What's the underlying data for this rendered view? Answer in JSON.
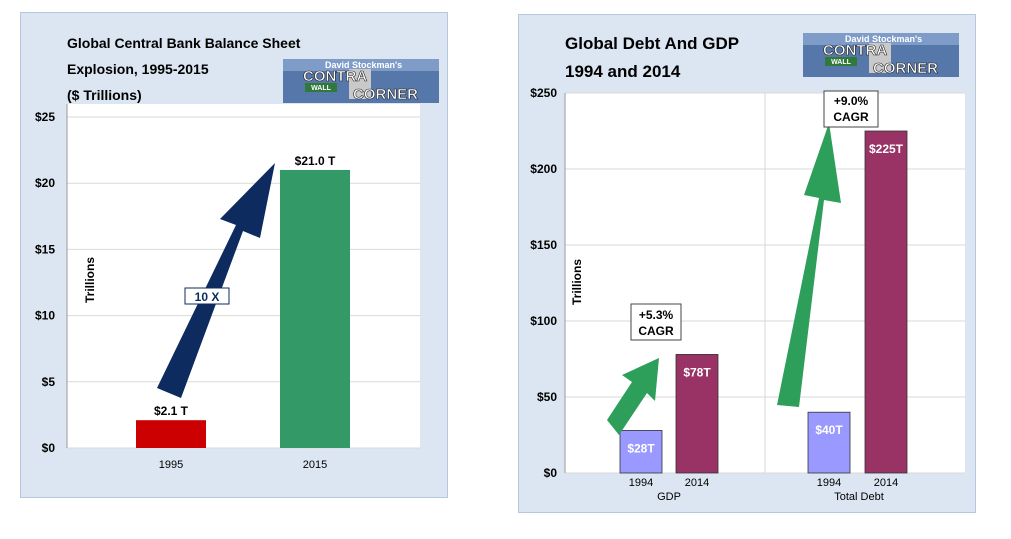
{
  "chart_data": [
    {
      "type": "bar",
      "title": "Global Central Bank Balance Sheet\nExplosion, 1995-2015\n($ Trillions)",
      "ylabel": "Trillions",
      "categories": [
        "1995",
        "2015"
      ],
      "values": [
        2.1,
        21.0
      ],
      "data_labels": [
        "$2.1 T",
        "$21.0 T"
      ],
      "ylim": [
        0,
        25
      ],
      "yticks": [
        0,
        5,
        10,
        15,
        20,
        25
      ],
      "ytick_labels": [
        "$0",
        "$5",
        "$10",
        "$15",
        "$20",
        "$25"
      ],
      "colors": [
        "#cc0000",
        "#339966"
      ],
      "grid": true,
      "annotations": [
        {
          "text": "10 X",
          "kind": "arrow",
          "color": "#0d2b5e"
        }
      ]
    },
    {
      "type": "bar",
      "title": "Global Debt And GDP\n1994 and 2014",
      "ylabel": "Trillions",
      "groups": [
        {
          "name": "GDP",
          "categories": [
            "1994",
            "2014"
          ],
          "values": [
            28,
            78
          ],
          "data_labels": [
            "$28T",
            "$78T"
          ]
        },
        {
          "name": "Total Debt",
          "categories": [
            "1994",
            "2014"
          ],
          "values": [
            40,
            225
          ],
          "data_labels": [
            "$40T",
            "$225T"
          ]
        }
      ],
      "ylim": [
        0,
        250
      ],
      "yticks": [
        0,
        50,
        100,
        150,
        200,
        250
      ],
      "ytick_labels": [
        "$0",
        "$50",
        "$100",
        "$150",
        "$200",
        "$250"
      ],
      "colors": {
        "1994": "#9999ff",
        "2014": "#993366"
      },
      "grid": true,
      "annotations": [
        {
          "text": "+5.3%\nCAGR",
          "kind": "arrow",
          "group": "GDP",
          "color": "#2e9e5b"
        },
        {
          "text": "+9.0%\nCAGR",
          "kind": "arrow",
          "group": "Total Debt",
          "color": "#2e9e5b"
        }
      ]
    }
  ],
  "logo": {
    "line1": "David Stockman's",
    "line2": "CONTRA",
    "line3": "CORNER",
    "sign": "WALL"
  }
}
